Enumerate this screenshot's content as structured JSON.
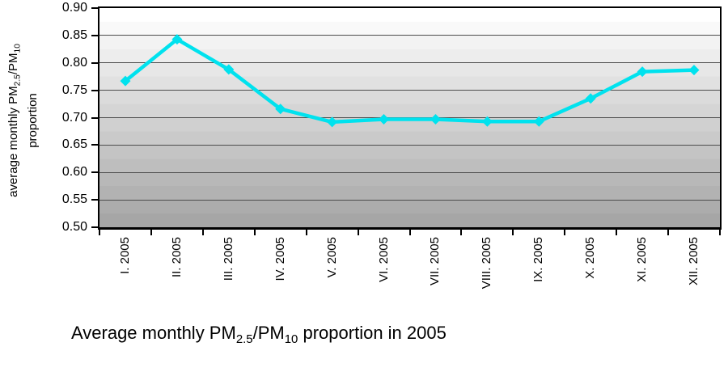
{
  "chart_data": {
    "type": "line",
    "title": "Average monthly PM2.5/PM10 proportion in 2005",
    "ylabel": "average monthly PM2.5/PM10 proportion",
    "xlabel": "",
    "categories": [
      "I. 2005",
      "II. 2005",
      "III. 2005",
      "IV. 2005",
      "V. 2005",
      "VI. 2005",
      "VII. 2005",
      "VIII. 2005",
      "IX. 2005",
      "X. 2005",
      "XI. 2005",
      "XII. 2005"
    ],
    "values": [
      0.767,
      0.843,
      0.788,
      0.716,
      0.692,
      0.697,
      0.697,
      0.693,
      0.693,
      0.735,
      0.784,
      0.787
    ],
    "ylim": [
      0.5,
      0.9
    ],
    "ytick_step": 0.05,
    "yticks": [
      "0.90",
      "0.85",
      "0.80",
      "0.75",
      "0.70",
      "0.65",
      "0.60",
      "0.55",
      "0.50"
    ],
    "grid": true,
    "legend": false,
    "marker": "diamond",
    "style": {
      "line_color": "#00E2EE",
      "gridline_color": "#4d4d4d",
      "plot_border_color": "#000000",
      "plot_bg_top": "#ffffff",
      "plot_bg_bottom": "#a6a6a6",
      "bg_steps": 16
    }
  },
  "y_axis_title": {
    "seg1": "average monthly PM",
    "sub1": "2.5",
    "seg2": "/PM",
    "sub2": "10",
    "line2": "proportion"
  },
  "caption": {
    "seg1": "Average monthly PM",
    "sub1": "2.5",
    "seg2": "/PM",
    "sub2": "10",
    "seg3": " proportion in 2005"
  }
}
